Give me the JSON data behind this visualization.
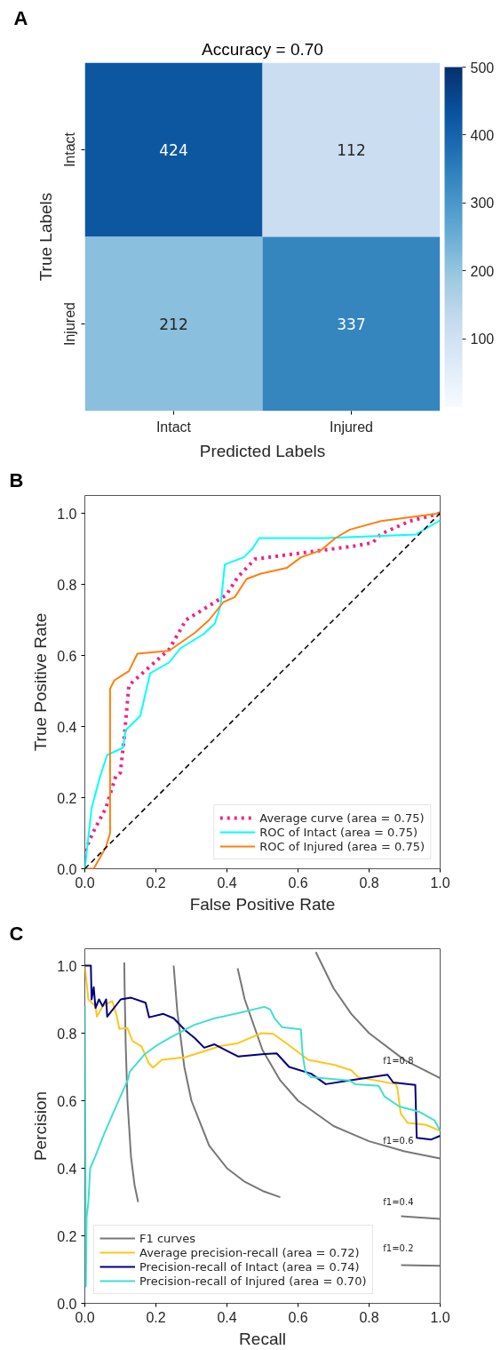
{
  "chart_data": [
    {
      "type": "heatmap",
      "title": "Accuracy = 0.70",
      "xlabel": "Predicted Labels",
      "ylabel": "True Labels",
      "annotations": [
        "A"
      ],
      "categories": [
        "Intact",
        "Injured"
      ],
      "y_categories": [
        "Intact",
        "Injured"
      ],
      "cells": [
        [
          424,
          112
        ],
        [
          212,
          337
        ]
      ],
      "clim": [
        0,
        500
      ],
      "cticks": [
        100,
        200,
        300,
        400,
        500
      ],
      "data_labels": true
    },
    {
      "type": "line",
      "xlabel": "False Positive Rate",
      "ylabel": "True Positive Rate",
      "annotations": [
        "B"
      ],
      "xlim": [
        0,
        1
      ],
      "ylim": [
        0,
        1.05
      ],
      "xticks": [
        {
          "value": 0,
          "label": "0.0"
        },
        {
          "value": 0.2,
          "label": "0.2"
        },
        {
          "value": 0.4,
          "label": "0.4"
        },
        {
          "value": 0.6,
          "label": "0.6"
        },
        {
          "value": 0.8,
          "label": "0.8"
        },
        {
          "value": 1,
          "label": "1.0"
        }
      ],
      "yticks": [
        {
          "value": 0,
          "label": "0.0"
        },
        {
          "value": 0.2,
          "label": "0.2"
        },
        {
          "value": 0.4,
          "label": "0.4"
        },
        {
          "value": 0.6,
          "label": "0.6"
        },
        {
          "value": 0.8,
          "label": "0.8"
        },
        {
          "value": 1,
          "label": "1.0"
        }
      ],
      "legend": "bottom right",
      "grid": false,
      "series": [
        {
          "name": "Average curve (area = 0.75)",
          "color": "#f0238a",
          "line_style": "dotted",
          "x": [
            0,
            0.027,
            0.059,
            0.087,
            0.1,
            0.111,
            0.124,
            0.18,
            0.237,
            0.285,
            0.334,
            0.398,
            0.43,
            0.479,
            0.592,
            0.754,
            0.81,
            0.834,
            0.915,
            1
          ],
          "values": [
            0.05,
            0.11,
            0.17,
            0.26,
            0.27,
            0.37,
            0.516,
            0.566,
            0.617,
            0.7,
            0.73,
            0.77,
            0.82,
            0.871,
            0.886,
            0.907,
            0.917,
            0.942,
            0.978,
            1
          ]
        },
        {
          "name": "ROC of Intact (area = 0.75)",
          "color": "#00ffff",
          "line_style": "solid",
          "x": [
            0,
            0.019,
            0.043,
            0.063,
            0.107,
            0.115,
            0.156,
            0.184,
            0.237,
            0.269,
            0.334,
            0.366,
            0.382,
            0.394,
            0.447,
            0.471,
            0.491,
            0.673,
            0.931,
            1
          ],
          "values": [
            0,
            0.17,
            0.26,
            0.32,
            0.34,
            0.39,
            0.43,
            0.55,
            0.58,
            0.62,
            0.66,
            0.69,
            0.74,
            0.856,
            0.876,
            0.9,
            0.93,
            0.93,
            0.94,
            0.98
          ]
        },
        {
          "name": "ROC of Injured (area = 0.75)",
          "color": "#ff7f0e",
          "line_style": "solid",
          "x": [
            0,
            0.025,
            0.059,
            0.071,
            0.071,
            0.083,
            0.124,
            0.148,
            0.237,
            0.309,
            0.35,
            0.39,
            0.422,
            0.455,
            0.495,
            0.568,
            0.608,
            0.665,
            0.705,
            0.746,
            0.834,
            1
          ],
          "values": [
            0,
            0,
            0.06,
            0.1,
            0.506,
            0.53,
            0.556,
            0.605,
            0.613,
            0.663,
            0.7,
            0.75,
            0.764,
            0.815,
            0.83,
            0.846,
            0.876,
            0.896,
            0.93,
            0.954,
            0.978,
            1
          ]
        },
        {
          "color": "#000000",
          "line_style": "dashed",
          "x": [
            0,
            1
          ],
          "values": [
            0,
            1
          ]
        }
      ]
    },
    {
      "type": "line",
      "xlabel": "Recall",
      "ylabel": "Percision",
      "annotations": [
        "C",
        "f1=0.2",
        "f1=0.4",
        "f1=0.6",
        "f1=0.8"
      ],
      "xlim": [
        0,
        1
      ],
      "ylim": [
        0,
        1.05
      ],
      "xticks": [
        {
          "value": 0,
          "label": "0.0"
        },
        {
          "value": 0.2,
          "label": "0.2"
        },
        {
          "value": 0.4,
          "label": "0.4"
        },
        {
          "value": 0.6,
          "label": "0.6"
        },
        {
          "value": 0.8,
          "label": "0.8"
        },
        {
          "value": 1,
          "label": "1.0"
        }
      ],
      "yticks": [
        {
          "value": 0,
          "label": "0.0"
        },
        {
          "value": 0.2,
          "label": "0.2"
        },
        {
          "value": 0.4,
          "label": "0.4"
        },
        {
          "value": 0.6,
          "label": "0.6"
        },
        {
          "value": 0.8,
          "label": "0.8"
        },
        {
          "value": 1,
          "label": "1.0"
        }
      ],
      "legend": "bottom left",
      "grid": false,
      "series": [
        {
          "name": "F1 curves",
          "color": "#777777",
          "line_style": "solid",
          "x": [
            0.111,
            0.112,
            0.115,
            0.12,
            0.13,
            0.14,
            0.15,
            0.5,
            0.89,
            1
          ],
          "values": [
            1.009,
            0.933,
            0.767,
            0.6,
            0.433,
            0.35,
            0.3,
            null,
            0.113,
            0.111
          ]
        },
        {
          "color": "#777777",
          "line_style": "solid",
          "x": [
            0.25,
            0.26,
            0.28,
            0.3,
            0.35,
            0.4,
            0.45,
            0.5,
            0.55,
            0.7,
            0.89,
            1
          ],
          "values": [
            1,
            0.867,
            0.7,
            0.6,
            0.467,
            0.4,
            0.36,
            0.333,
            0.314,
            null,
            0.258,
            0.25
          ]
        },
        {
          "color": "#777777",
          "line_style": "solid",
          "x": [
            0.43,
            0.45,
            0.5,
            0.55,
            0.6,
            0.7,
            0.8,
            0.9,
            1
          ],
          "values": [
            0.992,
            0.9,
            0.75,
            0.66,
            0.6,
            0.525,
            0.48,
            0.45,
            0.429
          ]
        },
        {
          "color": "#777777",
          "line_style": "solid",
          "x": [
            0.65,
            0.7,
            0.75,
            0.8,
            0.9,
            1
          ],
          "values": [
            1.04,
            0.933,
            0.857,
            0.8,
            0.72,
            0.667
          ]
        },
        {
          "name": "Average precision-recall (area = 0.72)",
          "color": "#ffc61a",
          "line_style": "solid",
          "x": [
            0,
            0.01,
            0.03,
            0.034,
            0.05,
            0.077,
            0.09,
            0.097,
            0.12,
            0.134,
            0.16,
            0.18,
            0.192,
            0.217,
            0.283,
            0.382,
            0.43,
            0.497,
            0.53,
            0.571,
            0.629,
            0.703,
            0.75,
            0.769,
            0.876,
            0.88,
            0.889,
            0.909,
            0.959,
            1
          ],
          "values": [
            1,
            0.9,
            0.88,
            0.849,
            0.88,
            0.895,
            0.85,
            0.813,
            0.815,
            0.777,
            0.76,
            0.711,
            0.698,
            0.721,
            0.729,
            0.762,
            0.77,
            0.8,
            0.798,
            0.767,
            0.721,
            0.706,
            0.69,
            0.67,
            0.649,
            0.634,
            0.562,
            0.534,
            0.529,
            0.511
          ]
        },
        {
          "name": "Precision-recall of Intact (area = 0.74)",
          "color": "#000080",
          "line_style": "solid",
          "x": [
            0,
            0.017,
            0.019,
            0.025,
            0.03,
            0.04,
            0.05,
            0.06,
            0.063,
            0.101,
            0.13,
            0.171,
            0.181,
            0.221,
            0.25,
            0.283,
            0.31,
            0.336,
            0.365,
            0.431,
            0.505,
            0.54,
            0.575,
            0.637,
            0.678,
            0.744,
            0.852,
            0.868,
            0.93,
            0.934,
            0.975,
            1
          ],
          "values": [
            1,
            1,
            0.9,
            0.936,
            0.875,
            0.9,
            0.88,
            0.9,
            0.849,
            0.9,
            0.905,
            0.89,
            0.847,
            0.857,
            0.844,
            0.808,
            0.785,
            0.757,
            0.767,
            0.731,
            0.738,
            0.74,
            0.7,
            0.68,
            0.649,
            0.66,
            0.677,
            0.654,
            0.647,
            0.49,
            0.485,
            0.496
          ]
        },
        {
          "name": "Precision-recall of Injured (area = 0.70)",
          "color": "#40e0d0",
          "line_style": "solid",
          "x": [
            0,
            0.003,
            0.005,
            0.01,
            0.015,
            0.029,
            0.052,
            0.081,
            0.122,
            0.126,
            0.167,
            0.2,
            0.242,
            0.307,
            0.365,
            0.431,
            0.505,
            0.522,
            0.534,
            0.555,
            0.608,
            0.613,
            0.621,
            0.637,
            0.744,
            0.761,
            0.827,
            0.843,
            0.885,
            0.942,
            0.984,
            1
          ],
          "values": [
            0.88,
            0.05,
            0.255,
            0.3,
            0.4,
            0.434,
            0.496,
            0.567,
            0.664,
            0.685,
            0.736,
            0.762,
            0.788,
            0.824,
            0.844,
            0.859,
            0.878,
            0.87,
            0.844,
            0.818,
            0.811,
            0.736,
            0.685,
            0.67,
            0.66,
            0.649,
            0.644,
            0.613,
            0.583,
            0.567,
            0.542,
            0.511
          ]
        }
      ]
    }
  ]
}
